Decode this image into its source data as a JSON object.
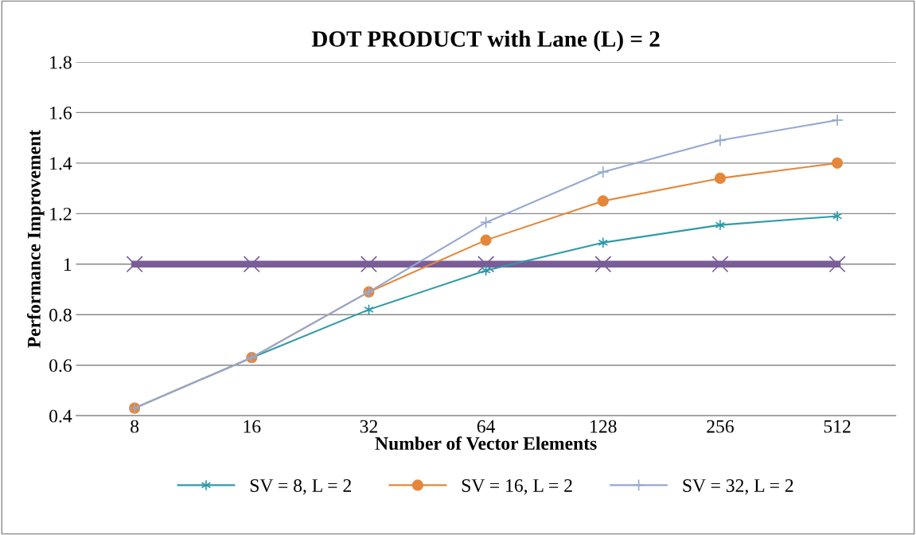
{
  "chart_data": {
    "type": "line",
    "title": "DOT PRODUCT with Lane (L) = 2",
    "xlabel": "Number of Vector Elements",
    "ylabel": "Performance Improvement",
    "categories": [
      "8",
      "16",
      "32",
      "64",
      "128",
      "256",
      "512"
    ],
    "series": [
      {
        "color": "#7a5c98",
        "marker": "cross",
        "values": [
          1,
          1,
          1,
          1,
          1,
          1,
          1
        ]
      },
      {
        "name": "SV = 8, L = 2",
        "color": "#2f9aa8",
        "marker": "cross",
        "values": [
          0.43,
          0.63,
          0.82,
          0.975,
          1.085,
          1.155,
          1.19
        ]
      },
      {
        "name": "SV = 16, L = 2",
        "color": "#e5873a",
        "marker": "circle",
        "values": [
          0.43,
          0.63,
          0.89,
          1.095,
          1.25,
          1.34,
          1.4
        ]
      },
      {
        "name": "SV = 32, L = 2",
        "color": "#95a9d0",
        "marker": "cross",
        "values": [
          0.43,
          0.63,
          0.89,
          1.165,
          1.365,
          1.49,
          1.57
        ]
      }
    ],
    "ylim": [
      0.4,
      1.8
    ],
    "yticks": [
      0.4,
      0.6,
      0.8,
      1,
      1.2,
      1.4,
      1.6,
      1.8
    ],
    "grid": "y",
    "legend": "bottom",
    "line_style": "solid"
  }
}
